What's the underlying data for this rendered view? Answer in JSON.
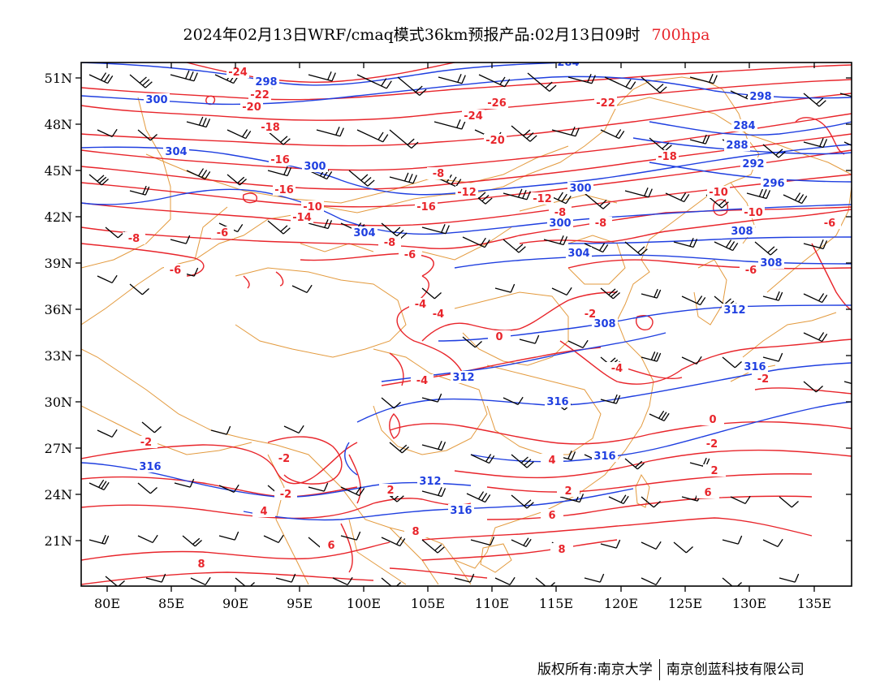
{
  "title": {
    "main": "2024年02月13日WRF/cmaq模式36km预报产品:02月13日09时",
    "level": "700hpa"
  },
  "colors": {
    "temperature": "#e8252b",
    "height": "#1f3fe0",
    "border": "#e39a3e",
    "wind": "#000000"
  },
  "lat_labels": [
    "51N",
    "48N",
    "45N",
    "42N",
    "39N",
    "36N",
    "33N",
    "30N",
    "27N",
    "24N",
    "21N"
  ],
  "lon_labels": [
    "80E",
    "85E",
    "90E",
    "95E",
    "100E",
    "105E",
    "110E",
    "115E",
    "120E",
    "125E",
    "130E",
    "135E"
  ],
  "temp_labels": [
    "-24",
    "-22",
    "-20",
    "-26",
    "-24",
    "-22",
    "-18",
    "-20",
    "-16",
    "-18",
    "-8",
    "-16",
    "-10",
    "-14",
    "-12",
    "-16",
    "-12",
    "-10",
    "-8",
    "-10",
    "-8",
    "-6",
    "-8",
    "-6",
    "-6",
    "-8",
    "-6",
    "-6",
    "-4",
    "-4",
    "-2",
    "-4",
    "-2",
    "0",
    "-4",
    "-2",
    "-2",
    "0",
    "-2",
    "2",
    "-2",
    "4",
    "4",
    "2",
    "2",
    "6",
    "6",
    "6",
    "8",
    "8",
    "8"
  ],
  "height_labels": [
    "298",
    "284",
    "300",
    "304",
    "300",
    "300",
    "298",
    "284",
    "288",
    "292",
    "296",
    "300",
    "304",
    "304",
    "308",
    "312",
    "308",
    "308",
    "312",
    "316",
    "316",
    "316",
    "312",
    "316",
    "316"
  ],
  "footer": {
    "left": "版权所有:南京大学",
    "right": "南京创蓝科技有限公司"
  }
}
